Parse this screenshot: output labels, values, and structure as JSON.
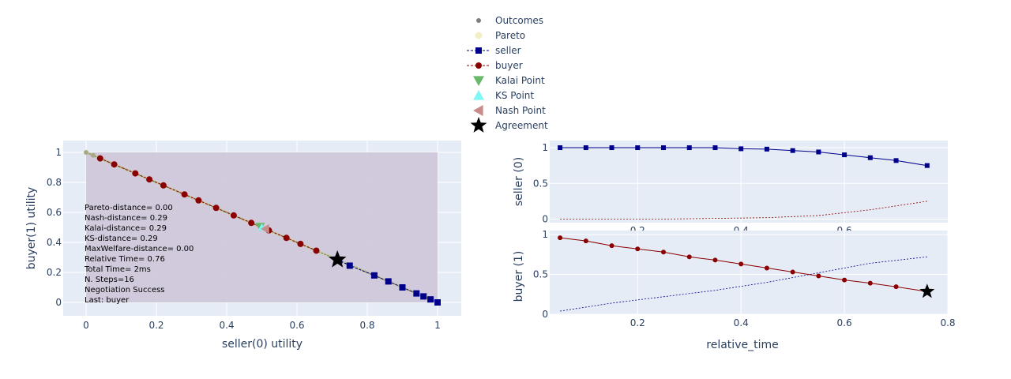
{
  "legend": {
    "items": [
      {
        "label": "Outcomes",
        "symbol": "circle-small",
        "color": "#7f7f7f"
      },
      {
        "label": "Pareto",
        "symbol": "circle-pale",
        "color": "#f2efc6"
      },
      {
        "label": "seller",
        "symbol": "line-square",
        "color": "#00008b"
      },
      {
        "label": "buyer",
        "symbol": "line-circle",
        "color": "#8b0000"
      },
      {
        "label": "Kalai Point",
        "symbol": "triangle-down",
        "color": "#6ab96a"
      },
      {
        "label": "KS Point",
        "symbol": "triangle-up",
        "color": "#7ff7f7"
      },
      {
        "label": "Nash Point",
        "symbol": "triangle-left",
        "color": "#c98c8c"
      },
      {
        "label": "Agreement",
        "symbol": "star",
        "color": "#000000"
      }
    ]
  },
  "colors": {
    "plot_bg": "#e5ecf6",
    "region": "#cdc6d9",
    "seller": "#00008b",
    "buyer": "#8b0000",
    "pareto_line": "#c8c8a0",
    "outcome": "#7f7f7f"
  },
  "chart_data": [
    {
      "type": "scatter",
      "xlabel": "seller(0) utility",
      "ylabel": "buyer(1) utility",
      "xlim": [
        0,
        1
      ],
      "ylim": [
        0,
        1
      ],
      "xticks": [
        "0",
        "0.2",
        "0.4",
        "0.6",
        "0.8",
        "1"
      ],
      "yticks": [
        "0",
        "0.2",
        "0.4",
        "0.6",
        "0.8",
        "1"
      ],
      "grid": true,
      "series": [
        {
          "name": "Outcomes",
          "points": [
            [
              0,
              1
            ],
            [
              0.02,
              0.98
            ],
            [
              0.5,
              0.5
            ],
            [
              1,
              0
            ]
          ]
        },
        {
          "name": "Pareto",
          "points": [
            [
              0,
              1
            ],
            [
              1,
              0
            ]
          ]
        },
        {
          "name": "seller",
          "points": [
            [
              1,
              0
            ],
            [
              0.98,
              0.02
            ],
            [
              0.96,
              0.04
            ],
            [
              0.94,
              0.06
            ],
            [
              0.9,
              0.1
            ],
            [
              0.86,
              0.14
            ],
            [
              0.82,
              0.18
            ],
            [
              0.75,
              0.245
            ],
            [
              0.72,
              0.28
            ]
          ]
        },
        {
          "name": "buyer",
          "points": [
            [
              0.04,
              0.96
            ],
            [
              0.08,
              0.92
            ],
            [
              0.14,
              0.86
            ],
            [
              0.18,
              0.82
            ],
            [
              0.22,
              0.78
            ],
            [
              0.28,
              0.72
            ],
            [
              0.32,
              0.68
            ],
            [
              0.37,
              0.63
            ],
            [
              0.42,
              0.58
            ],
            [
              0.47,
              0.53
            ],
            [
              0.52,
              0.48
            ],
            [
              0.57,
              0.43
            ],
            [
              0.61,
              0.39
            ],
            [
              0.655,
              0.345
            ]
          ]
        },
        {
          "name": "Kalai Point",
          "points": [
            [
              0.495,
              0.505
            ]
          ]
        },
        {
          "name": "KS Point",
          "points": [
            [
              0.5,
              0.5
            ]
          ]
        },
        {
          "name": "Nash Point",
          "points": [
            [
              0.51,
              0.49
            ]
          ]
        },
        {
          "name": "Agreement",
          "points": [
            [
              0.715,
              0.285
            ]
          ]
        }
      ],
      "annotations": [
        "Pareto-distance= 0.00",
        "Nash-distance= 0.29",
        "Kalai-distance= 0.29",
        "KS-distance= 0.29",
        "MaxWelfare-distance= 0.00",
        "Relative Time= 0.76",
        "Total Time= 2ms",
        "N. Steps=16",
        "Negotiation Success",
        "Last: buyer"
      ]
    },
    {
      "type": "line",
      "ylabel": "seller (0)",
      "xlim": [
        0.03,
        0.8
      ],
      "ylim": [
        -0.05,
        1.1
      ],
      "xticks": [
        "0.2",
        "0.4",
        "0.6"
      ],
      "yticks": [
        "0",
        "0.5",
        "1"
      ],
      "series": [
        {
          "name": "seller",
          "x": [
            0.05,
            0.1,
            0.15,
            0.2,
            0.25,
            0.3,
            0.35,
            0.4,
            0.45,
            0.5,
            0.55,
            0.6,
            0.65,
            0.7,
            0.76
          ],
          "y": [
            1,
            1,
            1,
            1,
            1,
            1,
            1,
            0.985,
            0.98,
            0.96,
            0.94,
            0.9,
            0.86,
            0.82,
            0.75
          ]
        },
        {
          "name": "buyer",
          "x": [
            0.05,
            0.15,
            0.25,
            0.35,
            0.45,
            0.55,
            0.65,
            0.76
          ],
          "y": [
            0,
            0,
            0,
            0.01,
            0.02,
            0.05,
            0.13,
            0.25
          ]
        }
      ]
    },
    {
      "type": "line",
      "xlabel": "relative_time",
      "ylabel": "buyer (1)",
      "xlim": [
        0.03,
        0.8
      ],
      "ylim": [
        0,
        1.05
      ],
      "xticks": [
        "0.2",
        "0.4",
        "0.6",
        "0.8"
      ],
      "yticks": [
        "0",
        "0.5",
        "1"
      ],
      "series": [
        {
          "name": "buyer",
          "x": [
            0.05,
            0.1,
            0.15,
            0.2,
            0.25,
            0.3,
            0.35,
            0.4,
            0.45,
            0.5,
            0.55,
            0.6,
            0.65,
            0.7,
            0.76
          ],
          "y": [
            0.96,
            0.92,
            0.86,
            0.82,
            0.78,
            0.72,
            0.68,
            0.63,
            0.58,
            0.53,
            0.48,
            0.43,
            0.39,
            0.345,
            0.285
          ]
        },
        {
          "name": "seller",
          "x": [
            0.05,
            0.15,
            0.25,
            0.35,
            0.45,
            0.55,
            0.65,
            0.76
          ],
          "y": [
            0.04,
            0.14,
            0.22,
            0.3,
            0.4,
            0.52,
            0.64,
            0.72
          ]
        },
        {
          "name": "Agreement",
          "x": [
            0.76
          ],
          "y": [
            0.285
          ]
        }
      ]
    }
  ]
}
